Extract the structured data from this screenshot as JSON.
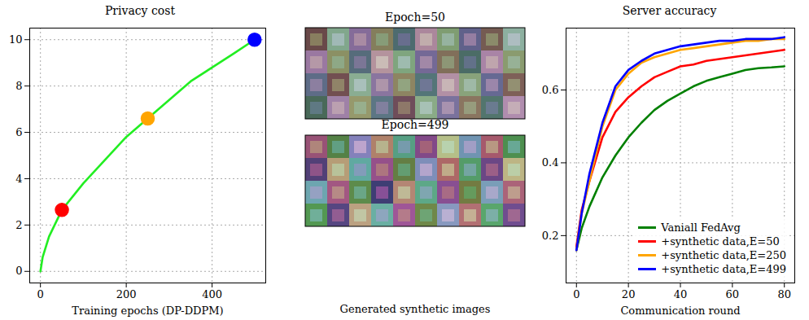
{
  "chart_data": [
    {
      "type": "line",
      "title": "Privacy cost",
      "x_label": "Training epochs (DP-DDPM)",
      "xlim": [
        -25,
        525
      ],
      "xticks": [
        0,
        200,
        400
      ],
      "ylim": [
        -0.5,
        10.5
      ],
      "yticks": [
        0,
        2,
        4,
        6,
        8,
        10
      ],
      "grid": true,
      "series": [
        {
          "type": "line",
          "color": "#22ee22",
          "x": [
            0,
            5,
            20,
            50,
            100,
            150,
            200,
            250,
            300,
            350,
            400,
            450,
            499
          ],
          "values": [
            0,
            0.6,
            1.5,
            2.65,
            3.8,
            4.8,
            5.8,
            6.6,
            7.4,
            8.2,
            8.8,
            9.4,
            10
          ]
        },
        {
          "type": "scatter",
          "marker": "circle",
          "color": "red",
          "x": [
            50
          ],
          "values": [
            2.65
          ]
        },
        {
          "type": "scatter",
          "marker": "circle",
          "color": "orange",
          "x": [
            250
          ],
          "values": [
            6.6
          ]
        },
        {
          "type": "scatter",
          "marker": "circle",
          "color": "blue",
          "x": [
            499
          ],
          "values": [
            10
          ]
        }
      ]
    },
    {
      "type": "image",
      "x_label": "Generated synthetic images",
      "tick_labels": false,
      "panels": [
        {
          "title": "Epoch=50"
        },
        {
          "title": "Epoch=499"
        }
      ]
    },
    {
      "type": "line",
      "title": "Server accuracy",
      "x_label": "Communication round",
      "x": [
        0,
        2,
        5,
        10,
        15,
        20,
        25,
        30,
        35,
        40,
        45,
        50,
        55,
        60,
        65,
        70,
        75,
        80
      ],
      "xlim": [
        -4,
        84
      ],
      "xticks": [
        0,
        20,
        40,
        60,
        80
      ],
      "ylim": [
        0.07,
        0.77
      ],
      "yticks": [
        0.2,
        0.4,
        0.6
      ],
      "grid": true,
      "legend": "lower right",
      "series": [
        {
          "name": "Vaniall FedAvg",
          "color": "green",
          "values": [
            0.16,
            0.22,
            0.28,
            0.36,
            0.42,
            0.47,
            0.51,
            0.545,
            0.57,
            0.59,
            0.61,
            0.625,
            0.635,
            0.645,
            0.655,
            0.66,
            0.662,
            0.665
          ]
        },
        {
          "name": "+synthetic data,E=50",
          "color": "red",
          "values": [
            0.17,
            0.27,
            0.35,
            0.47,
            0.54,
            0.58,
            0.61,
            0.635,
            0.65,
            0.665,
            0.67,
            0.68,
            0.685,
            0.69,
            0.695,
            0.7,
            0.705,
            0.71
          ]
        },
        {
          "name": "+synthetic data,E=250",
          "color": "orange",
          "values": [
            0.16,
            0.26,
            0.35,
            0.5,
            0.6,
            0.645,
            0.675,
            0.69,
            0.7,
            0.71,
            0.715,
            0.72,
            0.725,
            0.73,
            0.735,
            0.735,
            0.74,
            0.74
          ]
        },
        {
          "name": "+synthetic data,E=499",
          "color": "blue",
          "values": [
            0.16,
            0.26,
            0.37,
            0.51,
            0.61,
            0.655,
            0.68,
            0.7,
            0.71,
            0.72,
            0.725,
            0.73,
            0.735,
            0.735,
            0.74,
            0.74,
            0.74,
            0.745
          ]
        }
      ]
    }
  ]
}
